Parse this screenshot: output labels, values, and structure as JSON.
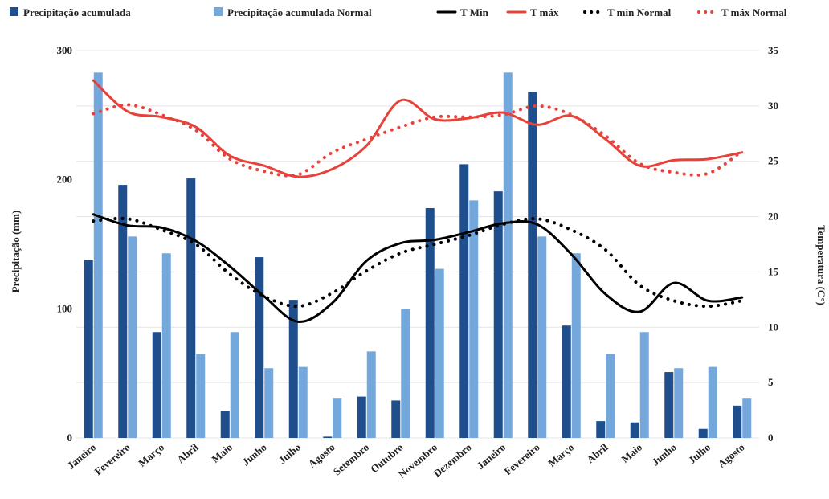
{
  "chart_data": {
    "type": "bar",
    "categories": [
      "Janeiro",
      "Fevereiro",
      "Março",
      "Abril",
      "Maio",
      "Junho",
      "Julho",
      "Agosto",
      "Setembro",
      "Outubro",
      "Novembro",
      "Dezembro",
      "Janeiro",
      "Fevereiro",
      "Março",
      "Abril",
      "Maio",
      "Junho",
      "Julho",
      "Agosto"
    ],
    "ylabel": "Precipitação (mm)",
    "y2label": "Temperatura (C°)",
    "ylim": [
      0,
      300
    ],
    "y2lim": [
      0,
      35
    ],
    "yticks": [
      "0",
      "100",
      "200",
      "300"
    ],
    "y2ticks": [
      "0",
      "5",
      "10",
      "15",
      "20",
      "25",
      "30",
      "35"
    ],
    "grid": true,
    "legend_position": "top",
    "bar_series": [
      {
        "name": "Precipitação acumulada",
        "color": "#1f4e8c",
        "values": [
          138,
          196,
          82,
          201,
          21,
          140,
          107,
          1,
          32,
          29,
          178,
          212,
          191,
          268,
          87,
          13,
          12,
          51,
          7,
          25
        ]
      },
      {
        "name": "Precipitação acumulada Normal",
        "color": "#74a8dc",
        "values": [
          283,
          156,
          143,
          65,
          82,
          54,
          55,
          31,
          67,
          100,
          131,
          184,
          283,
          156,
          143,
          65,
          82,
          54,
          55,
          31
        ]
      }
    ],
    "line_series": [
      {
        "name": "T Min",
        "color": "#000000",
        "style": "solid",
        "values": [
          20.2,
          19.2,
          19.0,
          17.8,
          15.5,
          12.8,
          10.5,
          12.2,
          16.0,
          17.6,
          17.9,
          18.6,
          19.4,
          19.3,
          16.6,
          13.0,
          11.4,
          14.0,
          12.4,
          12.7
        ]
      },
      {
        "name": "T máx",
        "color": "#e8413a",
        "style": "solid",
        "values": [
          32.3,
          29.5,
          29.0,
          28.1,
          25.5,
          24.6,
          23.6,
          24.3,
          26.4,
          30.5,
          28.8,
          28.9,
          29.4,
          28.3,
          29.1,
          27.0,
          24.6,
          25.1,
          25.2,
          25.8
        ]
      },
      {
        "name": "T min Normal",
        "color": "#000000",
        "style": "dotted",
        "values": [
          19.6,
          19.8,
          18.8,
          17.5,
          14.8,
          12.8,
          11.9,
          13.1,
          15.1,
          16.7,
          17.5,
          18.3,
          19.3,
          19.8,
          18.8,
          17.0,
          13.8,
          12.4,
          11.9,
          12.4
        ]
      },
      {
        "name": "T máx Normal",
        "color": "#e8413a",
        "style": "dotted",
        "values": [
          29.3,
          30.1,
          29.2,
          27.8,
          25.2,
          24.1,
          23.8,
          25.8,
          27.0,
          28.1,
          29.0,
          29.0,
          29.2,
          30.0,
          29.2,
          27.3,
          24.8,
          24.0,
          23.9,
          25.9
        ]
      }
    ]
  }
}
